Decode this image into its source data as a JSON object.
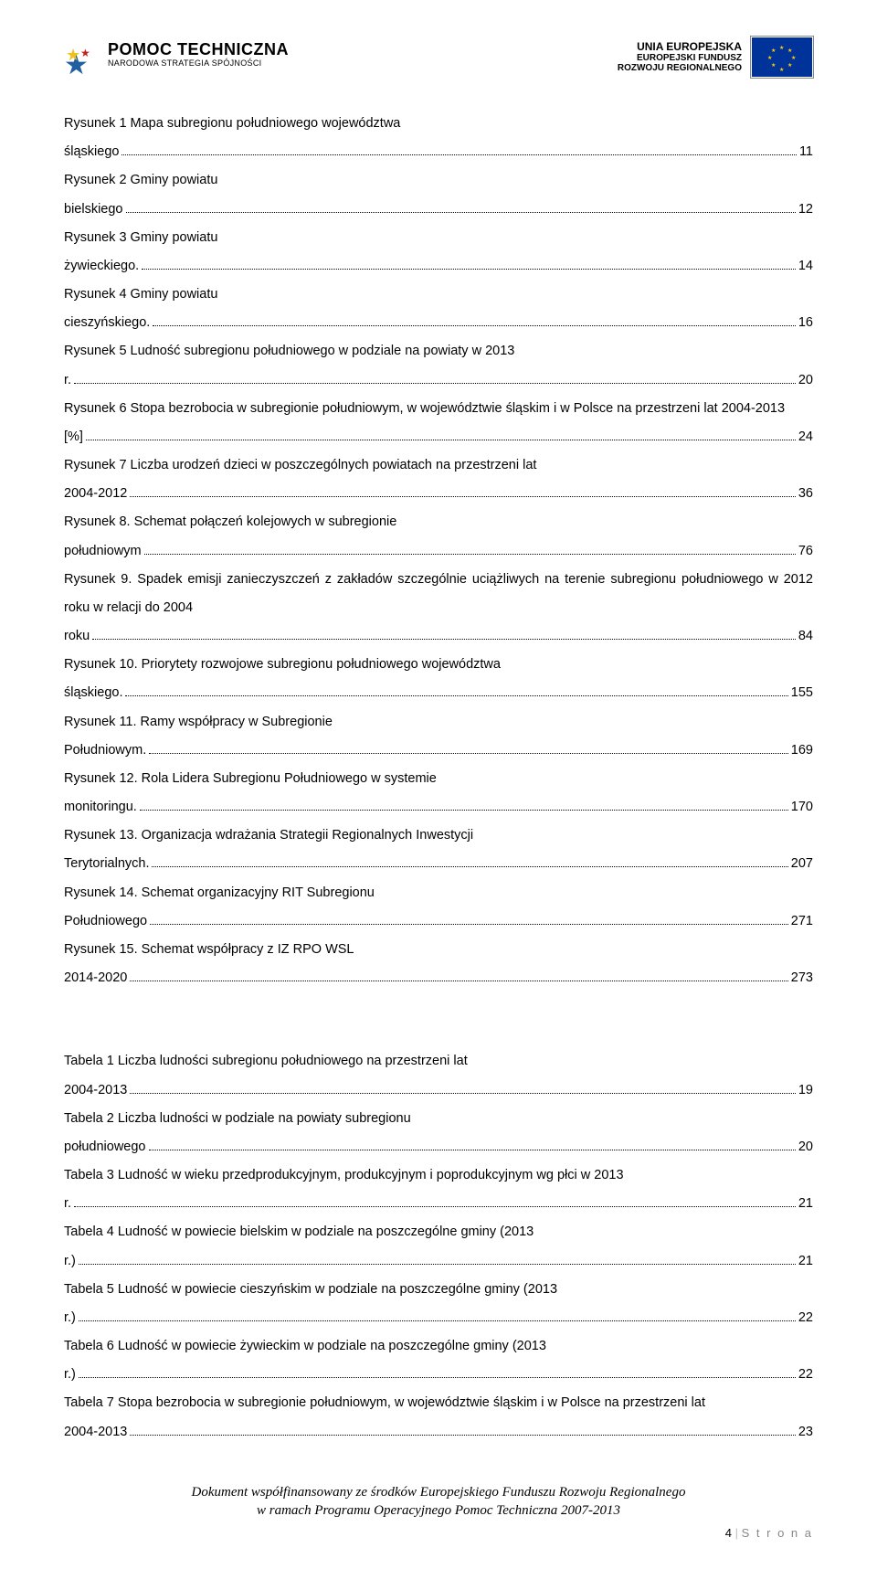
{
  "header": {
    "left_logo": {
      "title": "POMOC TECHNICZNA",
      "subtitle": "NARODOWA STRATEGIA SPÓJNOŚCI"
    },
    "right_logo": {
      "line1": "UNIA EUROPEJSKA",
      "line2": "EUROPEJSKI FUNDUSZ",
      "line3": "ROZWOJU REGIONALNEGO"
    }
  },
  "figures": [
    {
      "label": "Rysunek 1 Mapa subregionu południowego województwa śląskiego",
      "page": "11"
    },
    {
      "label": "Rysunek 2 Gminy powiatu bielskiego",
      "page": "12"
    },
    {
      "label": "Rysunek 3 Gminy powiatu żywieckiego.",
      "page": "14"
    },
    {
      "label": "Rysunek 4 Gminy powiatu cieszyńskiego.",
      "page": "16"
    },
    {
      "label": "Rysunek 5 Ludność subregionu południowego w podziale na powiaty w 2013 r.",
      "page": "20"
    },
    {
      "label": "Rysunek 6 Stopa bezrobocia w subregionie południowym, w województwie śląskim i w Polsce na przestrzeni lat 2004-2013 [%]",
      "page": "24"
    },
    {
      "label": "Rysunek 7 Liczba urodzeń dzieci w poszczególnych powiatach na przestrzeni lat 2004-2012",
      "page": "36"
    },
    {
      "label": "Rysunek 8. Schemat połączeń kolejowych w subregionie południowym",
      "page": "76"
    },
    {
      "label": "Rysunek 9. Spadek emisji zanieczyszczeń z zakładów szczególnie uciążliwych na terenie subregionu południowego w 2012 roku w relacji do 2004 roku",
      "page": "84"
    },
    {
      "label": "Rysunek 10. Priorytety rozwojowe subregionu południowego województwa śląskiego.",
      "page": "155"
    },
    {
      "label": "Rysunek 11. Ramy współpracy w Subregionie Południowym.",
      "page": "169"
    },
    {
      "label": "Rysunek 12. Rola Lidera Subregionu Południowego w systemie monitoringu.",
      "page": "170"
    },
    {
      "label": "Rysunek 13. Organizacja wdrażania Strategii Regionalnych Inwestycji Terytorialnych.",
      "page": "207"
    },
    {
      "label": "Rysunek 14. Schemat organizacyjny RIT Subregionu Południowego",
      "page": "271"
    },
    {
      "label": "Rysunek 15. Schemat współpracy z IZ RPO WSL 2014-2020",
      "page": "273"
    }
  ],
  "tables": [
    {
      "label": "Tabela 1 Liczba ludności subregionu południowego na przestrzeni lat 2004-2013",
      "page": "19"
    },
    {
      "label": "Tabela 2 Liczba ludności w podziale na powiaty subregionu południowego",
      "page": "20"
    },
    {
      "label": "Tabela 3 Ludność w wieku przedprodukcyjnym, produkcyjnym i poprodukcyjnym wg płci w 2013 r.",
      "page": "21"
    },
    {
      "label": "Tabela 4 Ludność w powiecie bielskim w podziale na poszczególne gminy (2013 r.)",
      "page": "21"
    },
    {
      "label": "Tabela 5 Ludność w powiecie cieszyńskim w podziale na poszczególne gminy (2013 r.)",
      "page": "22"
    },
    {
      "label": "Tabela 6 Ludność w powiecie żywieckim w podziale na poszczególne gminy (2013 r.)",
      "page": "22"
    },
    {
      "label": "Tabela 7 Stopa bezrobocia w subregionie południowym, w województwie śląskim i w Polsce na przestrzeni lat 2004-2013",
      "page": "23"
    }
  ],
  "footer": {
    "line1": "Dokument współfinansowany ze środków Europejskiego Funduszu Rozwoju Regionalnego",
    "line2": "w ramach Programu Operacyjnego Pomoc Techniczna 2007-2013",
    "page_number": "4",
    "page_word": "S t r o n a"
  },
  "colors": {
    "text": "#000000",
    "background": "#ffffff",
    "eu_flag_bg": "#003399",
    "eu_flag_stars": "#ffcc00",
    "logo_star_blue": "#2060a0",
    "logo_star_yellow": "#f0c020",
    "logo_star_red": "#c02020",
    "page_sep": "#bfbfbf",
    "page_word": "#888888"
  }
}
